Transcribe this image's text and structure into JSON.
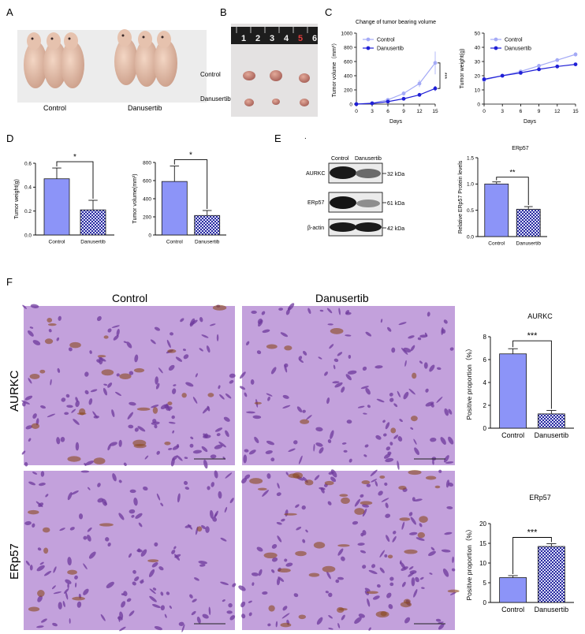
{
  "panel_labels": [
    "A",
    "B",
    "C",
    "D",
    "E",
    "F"
  ],
  "colors": {
    "control": "#8c94f8",
    "control_dot": "#a4aaf6",
    "danusertib": "#1f1fd6",
    "axis": "#000000",
    "he_purple": "#a365c8",
    "dab_brown": "#8a4a1e",
    "photo_bg": "#ececec"
  },
  "panel_a": {
    "labels": [
      "Control",
      "Danusertib"
    ]
  },
  "panel_b": {
    "ruler_numbers": [
      "1",
      "2",
      "3",
      "4",
      "5",
      "6"
    ],
    "row_labels": [
      "Control",
      "Danusertib"
    ]
  },
  "panel_e": {
    "blot_headers": [
      "Control",
      "Danusertib"
    ],
    "proteins": [
      "AURKC",
      "ERp57",
      "β-actin"
    ],
    "kda": [
      "32 kDa",
      "61 kDa",
      "42 kDa"
    ],
    "dot": "."
  },
  "panel_f": {
    "col_labels": [
      "Control",
      "Danusertib"
    ],
    "row_labels": [
      "AURKC",
      "ERp57"
    ]
  },
  "chart_data": [
    {
      "id": "C1",
      "type": "line",
      "title": "Change of tumor bearing volume",
      "xlabel": "Days",
      "ylabel": "Tumor volume（mm³）",
      "x": [
        0,
        3,
        6,
        9,
        12,
        15
      ],
      "xticks": [
        "0",
        "3",
        "6",
        "9",
        "12",
        "15"
      ],
      "yticks": [
        "0",
        "200",
        "400",
        "600",
        "800",
        "1000"
      ],
      "ylim": [
        0,
        1000
      ],
      "series": [
        {
          "name": "Control",
          "values": [
            0,
            15,
            60,
            150,
            290,
            580
          ],
          "err": [
            0,
            5,
            15,
            30,
            50,
            160
          ]
        },
        {
          "name": "Danusertib",
          "values": [
            0,
            10,
            35,
            75,
            130,
            220
          ],
          "err": [
            0,
            3,
            8,
            12,
            20,
            35
          ]
        }
      ],
      "annotation": "***",
      "legend": "top-left"
    },
    {
      "id": "C2",
      "type": "line",
      "title": "",
      "xlabel": "Days",
      "ylabel": "Tumor weight(g)",
      "x": [
        0,
        3,
        6,
        9,
        12,
        15
      ],
      "xticks": [
        "0",
        "3",
        "6",
        "9",
        "12",
        "15"
      ],
      "yticks": [
        "0",
        "10",
        "20",
        "30",
        "40",
        "50"
      ],
      "ylim": [
        0,
        50
      ],
      "series": [
        {
          "name": "Control",
          "values": [
            17,
            20,
            23,
            27,
            31,
            35
          ],
          "err": [
            0.5,
            0.6,
            0.8,
            1,
            1.2,
            1.5
          ]
        },
        {
          "name": "Danusertib",
          "values": [
            17.5,
            20,
            22,
            24.5,
            26.5,
            28
          ],
          "err": [
            0.5,
            0.5,
            0.6,
            0.8,
            1,
            1.2
          ]
        }
      ],
      "legend": "top-left"
    },
    {
      "id": "D1",
      "type": "bar",
      "title": "",
      "xlabel": "",
      "ylabel": "Tumor weight(g)",
      "categories": [
        "Control",
        "Danusertib"
      ],
      "values": [
        0.47,
        0.21
      ],
      "err": [
        0.09,
        0.08
      ],
      "yticks": [
        "0.0",
        "0.2",
        "0.4",
        "0.6"
      ],
      "ylim": [
        0,
        0.6
      ],
      "annotation": "*"
    },
    {
      "id": "D2",
      "type": "bar",
      "title": "",
      "xlabel": "",
      "ylabel": "Tumor volume(mm³)",
      "categories": [
        "Control",
        "Danusertib"
      ],
      "values": [
        590,
        215
      ],
      "err": [
        170,
        55
      ],
      "yticks": [
        "0",
        "200",
        "400",
        "600",
        "800"
      ],
      "ylim": [
        0,
        800
      ],
      "annotation": "*"
    },
    {
      "id": "E",
      "type": "bar",
      "title": "ERp57",
      "xlabel": "",
      "ylabel": "Relative ERp57 Protein levels",
      "categories": [
        "Control",
        "Danusertib"
      ],
      "values": [
        1.0,
        0.52
      ],
      "err": [
        0.04,
        0.05
      ],
      "yticks": [
        "0.0",
        "0.5",
        "1.0",
        "1.5"
      ],
      "ylim": [
        0,
        1.5
      ],
      "annotation": "**"
    },
    {
      "id": "F1",
      "type": "bar",
      "title": "AURKC",
      "xlabel": "",
      "ylabel": "Positive proportion（%）",
      "categories": [
        "Control",
        "Danusertib"
      ],
      "values": [
        6.5,
        1.25
      ],
      "err": [
        0.45,
        0.3
      ],
      "yticks": [
        "0",
        "2",
        "4",
        "6",
        "8"
      ],
      "ylim": [
        0,
        8
      ],
      "annotation": "***"
    },
    {
      "id": "F2",
      "type": "bar",
      "title": "ERp57",
      "xlabel": "",
      "ylabel": "Positive proportion（%）",
      "categories": [
        "Control",
        "Danusertib"
      ],
      "values": [
        6.3,
        14.2
      ],
      "err": [
        0.5,
        0.7
      ],
      "yticks": [
        "0",
        "5",
        "10",
        "15",
        "20"
      ],
      "ylim": [
        0,
        20
      ],
      "annotation": "***"
    }
  ]
}
